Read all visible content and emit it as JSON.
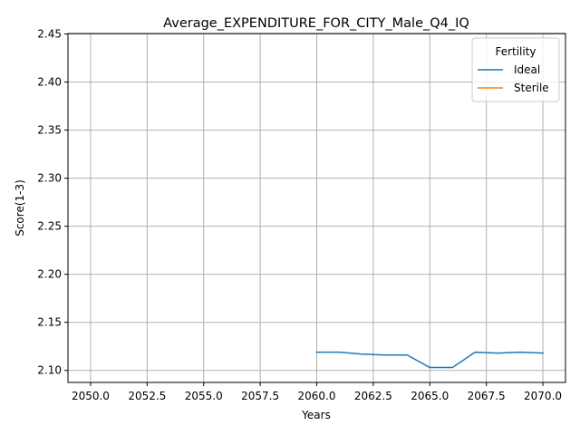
{
  "chart_data": {
    "type": "line",
    "title": "Average_EXPENDITURE_FOR_CITY_Male_Q4_IQ",
    "xlabel": "Years",
    "ylabel": "Score(1-3)",
    "xlim": [
      2049.0,
      2071.0
    ],
    "ylim": [
      2.0875,
      2.4505
    ],
    "xticks": [
      2050.0,
      2052.5,
      2055.0,
      2057.5,
      2060.0,
      2062.5,
      2065.0,
      2067.5,
      2070.0
    ],
    "xtick_labels": [
      "2050.0",
      "2052.5",
      "2055.0",
      "2057.5",
      "2060.0",
      "2062.5",
      "2065.0",
      "2067.5",
      "2070.0"
    ],
    "yticks": [
      2.1,
      2.15,
      2.2,
      2.25,
      2.3,
      2.35,
      2.4,
      2.45
    ],
    "ytick_labels": [
      "2.10",
      "2.15",
      "2.20",
      "2.25",
      "2.30",
      "2.35",
      "2.40",
      "2.45"
    ],
    "grid": true,
    "legend": {
      "title": "Fertility",
      "placement": "top-right"
    },
    "series": [
      {
        "name": "Ideal",
        "color": "#1f77b4",
        "x": [
          2060,
          2061,
          2062,
          2063,
          2064,
          2065,
          2066,
          2067,
          2068,
          2069,
          2070
        ],
        "y": [
          2.119,
          2.119,
          2.117,
          2.116,
          2.116,
          2.103,
          2.103,
          2.119,
          2.118,
          2.119,
          2.118
        ]
      },
      {
        "name": "Sterile",
        "color": "#ff7f0e",
        "x": [],
        "y": []
      }
    ]
  }
}
